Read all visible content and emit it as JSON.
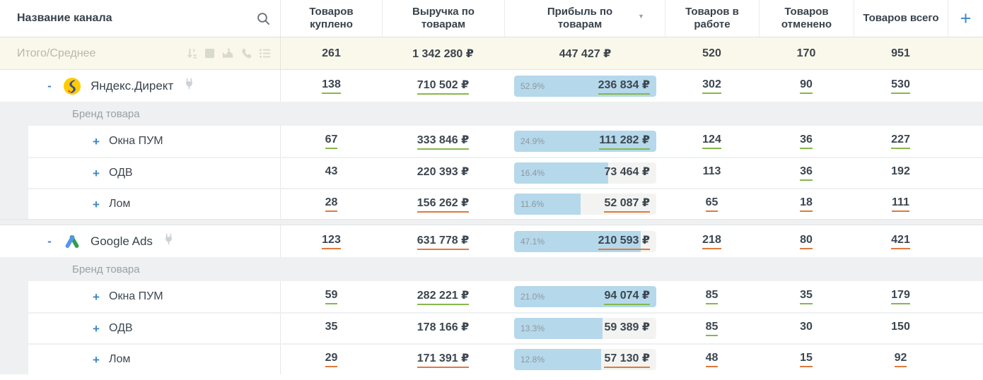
{
  "header": {
    "name_column": "Название канала",
    "columns": [
      {
        "key": "bought",
        "label": "Товаров куплено"
      },
      {
        "key": "revenue",
        "label": "Выручка по товарам"
      },
      {
        "key": "profit",
        "label": "Прибыль по товарам",
        "sorted": "desc"
      },
      {
        "key": "in_work",
        "label": "Товаров в работе"
      },
      {
        "key": "cancelled",
        "label": "Товаров отменено"
      },
      {
        "key": "total",
        "label": "Товаров всего"
      }
    ],
    "add_column_button": "+"
  },
  "totals": {
    "label": "Итого/Среднее",
    "toolbar_icons": [
      "sort-numeric-icon",
      "square-icon",
      "area-chart-icon",
      "phone-icon",
      "list-icon"
    ],
    "bought": "261",
    "revenue": "1 342 280 ₽",
    "profit": "447 427 ₽",
    "in_work": "520",
    "cancelled": "170",
    "total": "951"
  },
  "rows": [
    {
      "type": "channel",
      "name": "Яндекс.Директ",
      "logo": "yandex-direct-logo",
      "toggle": "-",
      "cells": {
        "bought": {
          "v": "138",
          "trend": "up"
        },
        "revenue": {
          "v": "710 502 ₽",
          "trend": "up"
        },
        "profit": {
          "percent": "52.9%",
          "v": "236 834 ₽",
          "trend": "up",
          "fill": 100
        },
        "in_work": {
          "v": "302",
          "trend": "up"
        },
        "cancelled": {
          "v": "90",
          "trend": "up"
        },
        "total": {
          "v": "530",
          "trend": "up"
        }
      }
    },
    {
      "type": "group_label",
      "label": "Бренд товара"
    },
    {
      "type": "brand",
      "name": "Окна ПУМ",
      "toggle": "+",
      "cells": {
        "bought": {
          "v": "67",
          "trend": "up"
        },
        "revenue": {
          "v": "333 846 ₽",
          "trend": "up"
        },
        "profit": {
          "percent": "24.9%",
          "v": "111 282 ₽",
          "trend": "up",
          "fill": 100
        },
        "in_work": {
          "v": "124",
          "trend": "up"
        },
        "cancelled": {
          "v": "36",
          "trend": "up"
        },
        "total": {
          "v": "227",
          "trend": "up"
        }
      }
    },
    {
      "type": "brand",
      "name": "ОДВ",
      "toggle": "+",
      "cells": {
        "bought": {
          "v": "43",
          "trend": "none"
        },
        "revenue": {
          "v": "220 393 ₽",
          "trend": "none"
        },
        "profit": {
          "percent": "16.4%",
          "v": "73 464 ₽",
          "trend": "none",
          "fill": 66
        },
        "in_work": {
          "v": "113",
          "trend": "none"
        },
        "cancelled": {
          "v": "36",
          "trend": "up"
        },
        "total": {
          "v": "192",
          "trend": "none"
        }
      }
    },
    {
      "type": "brand",
      "name": "Лом",
      "toggle": "+",
      "cells": {
        "bought": {
          "v": "28",
          "trend": "down"
        },
        "revenue": {
          "v": "156 262 ₽",
          "trend": "down"
        },
        "profit": {
          "percent": "11.6%",
          "v": "52 087 ₽",
          "trend": "down",
          "fill": 47
        },
        "in_work": {
          "v": "65",
          "trend": "down"
        },
        "cancelled": {
          "v": "18",
          "trend": "down"
        },
        "total": {
          "v": "111",
          "trend": "down"
        }
      }
    },
    {
      "type": "section_gap"
    },
    {
      "type": "channel",
      "name": "Google Ads",
      "logo": "google-ads-logo",
      "toggle": "-",
      "cells": {
        "bought": {
          "v": "123",
          "trend": "down"
        },
        "revenue": {
          "v": "631 778 ₽",
          "trend": "down"
        },
        "profit": {
          "percent": "47.1%",
          "v": "210 593 ₽",
          "trend": "down",
          "fill": 89
        },
        "in_work": {
          "v": "218",
          "trend": "down"
        },
        "cancelled": {
          "v": "80",
          "trend": "down"
        },
        "total": {
          "v": "421",
          "trend": "down"
        }
      }
    },
    {
      "type": "group_label",
      "label": "Бренд товара"
    },
    {
      "type": "brand",
      "name": "Окна ПУМ",
      "toggle": "+",
      "cells": {
        "bought": {
          "v": "59",
          "trend": "up"
        },
        "revenue": {
          "v": "282 221 ₽",
          "trend": "up"
        },
        "profit": {
          "percent": "21.0%",
          "v": "94 074 ₽",
          "trend": "up",
          "fill": 100
        },
        "in_work": {
          "v": "85",
          "trend": "up"
        },
        "cancelled": {
          "v": "35",
          "trend": "up"
        },
        "total": {
          "v": "179",
          "trend": "up"
        }
      }
    },
    {
      "type": "brand",
      "name": "ОДВ",
      "toggle": "+",
      "cells": {
        "bought": {
          "v": "35",
          "trend": "none"
        },
        "revenue": {
          "v": "178 166 ₽",
          "trend": "none"
        },
        "profit": {
          "percent": "13.3%",
          "v": "59 389 ₽",
          "trend": "none",
          "fill": 62
        },
        "in_work": {
          "v": "85",
          "trend": "up"
        },
        "cancelled": {
          "v": "30",
          "trend": "none"
        },
        "total": {
          "v": "150",
          "trend": "none"
        }
      }
    },
    {
      "type": "brand",
      "name": "Лом",
      "toggle": "+",
      "cells": {
        "bought": {
          "v": "29",
          "trend": "down"
        },
        "revenue": {
          "v": "171 391 ₽",
          "trend": "down"
        },
        "profit": {
          "percent": "12.8%",
          "v": "57 130 ₽",
          "trend": "down",
          "fill": 61
        },
        "in_work": {
          "v": "48",
          "trend": "down"
        },
        "cancelled": {
          "v": "15",
          "trend": "down"
        },
        "total": {
          "v": "92",
          "trend": "down"
        }
      }
    }
  ],
  "colors": {
    "trend_up_underline": "#85b84a",
    "trend_down_underline": "#de7a3d",
    "profit_bar_fill": "#b5d8eb",
    "totals_background": "#faf8ea",
    "section_background": "#eef0f1",
    "accent_blue": "#3b87c8"
  }
}
